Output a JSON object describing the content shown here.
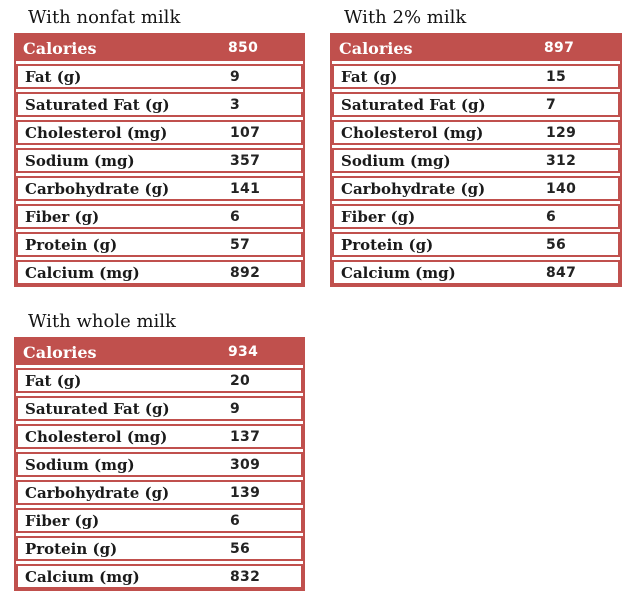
{
  "colors": {
    "accent_red": "#c0504d",
    "label_text": "#1a1a1a",
    "value_text": "#232323",
    "header_text": "#ffffff"
  },
  "tables": [
    {
      "title": "With nonfat milk",
      "header": {
        "label": "Calories",
        "value": "850"
      },
      "rows": [
        {
          "label": "Fat (g)",
          "value": "9"
        },
        {
          "label": "Saturated Fat (g)",
          "value": "3"
        },
        {
          "label": "Cholesterol (mg)",
          "value": "107"
        },
        {
          "label": "Sodium (mg)",
          "value": "357"
        },
        {
          "label": "Carbohydrate (g)",
          "value": "141"
        },
        {
          "label": "Fiber (g)",
          "value": "6"
        },
        {
          "label": "Protein (g)",
          "value": "57"
        },
        {
          "label": "Calcium (mg)",
          "value": "892"
        }
      ]
    },
    {
      "title": "With 2% milk",
      "header": {
        "label": "Calories",
        "value": "897"
      },
      "rows": [
        {
          "label": "Fat (g)",
          "value": "15"
        },
        {
          "label": "Saturated Fat (g)",
          "value": "7"
        },
        {
          "label": "Cholesterol (mg)",
          "value": "129"
        },
        {
          "label": "Sodium (mg)",
          "value": "312"
        },
        {
          "label": "Carbohydrate (g)",
          "value": "140"
        },
        {
          "label": "Fiber (g)",
          "value": "6"
        },
        {
          "label": "Protein (g)",
          "value": "56"
        },
        {
          "label": "Calcium (mg)",
          "value": "847"
        }
      ]
    },
    {
      "title": "With whole milk",
      "header": {
        "label": "Calories",
        "value": "934"
      },
      "rows": [
        {
          "label": "Fat (g)",
          "value": "20"
        },
        {
          "label": "Saturated Fat (g)",
          "value": "9"
        },
        {
          "label": "Cholesterol (mg)",
          "value": "137"
        },
        {
          "label": "Sodium (mg)",
          "value": "309"
        },
        {
          "label": "Carbohydrate (g)",
          "value": "139"
        },
        {
          "label": "Fiber (g)",
          "value": "6"
        },
        {
          "label": "Protein (g)",
          "value": "56"
        },
        {
          "label": "Calcium (mg)",
          "value": "832"
        }
      ]
    }
  ]
}
